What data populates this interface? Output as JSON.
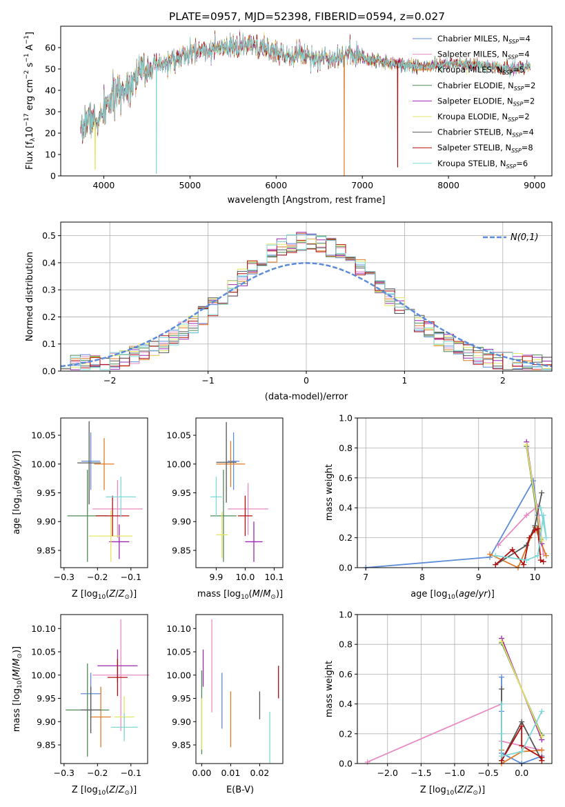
{
  "figure": {
    "title": "PLATE=0957, MJD=52398, FIBERID=0594, z=0.027"
  },
  "colors": [
    "#5b8bd9",
    "#e88bc4",
    "#e07a23",
    "#4f8a55",
    "#9b27b0",
    "#e2e560",
    "#555555",
    "#b00d0d",
    "#7fd8d8"
  ],
  "legend_labels": [
    {
      "text": "Chabrier MILES, N",
      "sub": "SSP",
      "tail": "=4"
    },
    {
      "text": "Salpeter MILES, N",
      "sub": "SSP",
      "tail": "=4"
    },
    {
      "text": "Kroupa MILES, N",
      "sub": "SSP",
      "tail": "=5"
    },
    {
      "text": "Chabrier ELODIE, N",
      "sub": "SSP",
      "tail": "=2"
    },
    {
      "text": "Salpeter ELODIE, N",
      "sub": "SSP",
      "tail": "=2"
    },
    {
      "text": "Kroupa ELODIE, N",
      "sub": "SSP",
      "tail": "=2"
    },
    {
      "text": "Chabrier STELIB, N",
      "sub": "SSP",
      "tail": "=4"
    },
    {
      "text": "Salpeter STELIB, N",
      "sub": "SSP",
      "tail": "=8"
    },
    {
      "text": "Kroupa STELIB, N",
      "sub": "SSP",
      "tail": "=6"
    }
  ],
  "chart_data": [
    {
      "id": "spectrum",
      "type": "line",
      "title": "PLATE=0957, MJD=52398, FIBERID=0594, z=0.027",
      "xlabel": "wavelength [Angstrom, rest frame]",
      "ylabel": "Flux [f_λ 10^-17 erg cm^-2 s^-1 A^-1]",
      "xlim": [
        3500,
        9200
      ],
      "ylim": [
        0,
        70
      ],
      "xticks": [
        4000,
        5000,
        6000,
        7000,
        8000,
        9000
      ],
      "yticks": [
        0,
        10,
        20,
        30,
        40,
        50,
        60
      ],
      "grid": false,
      "legend": "top-right",
      "continuum": [
        [
          3730,
          16
        ],
        [
          3780,
          26
        ],
        [
          3850,
          27
        ],
        [
          3900,
          25
        ],
        [
          3970,
          27
        ],
        [
          4050,
          34
        ],
        [
          4150,
          38
        ],
        [
          4300,
          43
        ],
        [
          4400,
          48
        ],
        [
          4550,
          51
        ],
        [
          4700,
          52
        ],
        [
          4850,
          55
        ],
        [
          5000,
          57
        ],
        [
          5150,
          59
        ],
        [
          5300,
          59
        ],
        [
          5500,
          60
        ],
        [
          5700,
          61
        ],
        [
          5900,
          59
        ],
        [
          6100,
          57
        ],
        [
          6300,
          57
        ],
        [
          6500,
          55
        ],
        [
          6700,
          56
        ],
        [
          6900,
          57
        ],
        [
          7100,
          54
        ],
        [
          7300,
          53
        ],
        [
          7500,
          52
        ],
        [
          7700,
          51
        ],
        [
          7900,
          52
        ],
        [
          8200,
          52
        ],
        [
          8500,
          51
        ],
        [
          8750,
          50
        ],
        [
          8950,
          51
        ]
      ],
      "dips": [
        [
          4610,
          1,
          8
        ],
        [
          6790,
          0,
          2
        ],
        [
          7410,
          4,
          7
        ],
        [
          3900,
          3,
          5
        ]
      ]
    },
    {
      "id": "residuals",
      "type": "histogram",
      "xlabel": "(data-model)/error",
      "ylabel": "Normed distribution",
      "xlim": [
        -2.5,
        2.5
      ],
      "ylim": [
        0,
        0.55
      ],
      "xticks": [
        -2,
        -1,
        0,
        1,
        2
      ],
      "yticks": [
        0.0,
        0.1,
        0.2,
        0.3,
        0.4,
        0.5
      ],
      "grid": true,
      "legend": "top-right",
      "bin_width": 0.1,
      "normal_label": "N(0,1)"
    },
    {
      "id": "age-vs-Z",
      "type": "errorbar",
      "xlabel": "Z [log10(Z/Z☉)]",
      "ylabel": "age [log10(age/yr)]",
      "xlim": [
        -0.31,
        -0.05
      ],
      "ylim": [
        9.82,
        10.08
      ],
      "xticks": [
        -0.3,
        -0.2,
        -0.1
      ],
      "yticks": [
        9.85,
        9.9,
        9.95,
        10.0,
        10.05
      ],
      "points": [
        {
          "x": -0.22,
          "xerr": 0.028,
          "y": 10.005,
          "yerr": 0.05
        },
        {
          "x": -0.14,
          "xerr": 0.075,
          "y": 9.922,
          "yerr": 0.05
        },
        {
          "x": -0.18,
          "xerr": 0.03,
          "y": 10.0,
          "yerr": 0.045
        },
        {
          "x": -0.23,
          "xerr": 0.06,
          "y": 9.91,
          "yerr": 0.08
        },
        {
          "x": -0.135,
          "xerr": 0.03,
          "y": 9.865,
          "yerr": 0.03
        },
        {
          "x": -0.16,
          "xerr": 0.065,
          "y": 9.875,
          "yerr": 0.045
        },
        {
          "x": -0.225,
          "xerr": 0.035,
          "y": 10.002,
          "yerr": 0.072
        },
        {
          "x": -0.155,
          "xerr": 0.05,
          "y": 9.91,
          "yerr": 0.035
        },
        {
          "x": -0.13,
          "xerr": 0.045,
          "y": 9.943,
          "yerr": 0.035
        }
      ]
    },
    {
      "id": "age-vs-mass",
      "type": "errorbar",
      "xlabel": "mass [log10(M/M☉)]",
      "xlim": [
        9.83,
        10.13
      ],
      "ylim": [
        9.82,
        10.08
      ],
      "xticks": [
        9.9,
        10.0,
        10.1
      ],
      "yticks": [
        9.85,
        9.9,
        9.95,
        10.0,
        10.05
      ],
      "points": [
        {
          "x": 9.96,
          "xerr": 0.02,
          "y": 10.005,
          "yerr": 0.05
        },
        {
          "x": 10.01,
          "xerr": 0.07,
          "y": 9.922,
          "yerr": 0.045
        },
        {
          "x": 9.95,
          "xerr": 0.05,
          "y": 10.0,
          "yerr": 0.04
        },
        {
          "x": 9.925,
          "xerr": 0.045,
          "y": 9.91,
          "yerr": 0.08
        },
        {
          "x": 10.03,
          "xerr": 0.03,
          "y": 9.865,
          "yerr": 0.035
        },
        {
          "x": 9.92,
          "xerr": 0.02,
          "y": 9.877,
          "yerr": 0.04
        },
        {
          "x": 9.935,
          "xerr": 0.035,
          "y": 10.003,
          "yerr": 0.07
        },
        {
          "x": 10.0,
          "xerr": 0.025,
          "y": 9.91,
          "yerr": 0.035
        },
        {
          "x": 9.9,
          "xerr": 0.02,
          "y": 9.943,
          "yerr": 0.035
        }
      ]
    },
    {
      "id": "mass-weight-vs-age",
      "type": "line",
      "xlabel": "age [log10(age/yr)]",
      "ylabel": "mass weight",
      "xlim": [
        6.85,
        10.3
      ],
      "ylim": [
        0,
        1.0
      ],
      "xticks": [
        7,
        8,
        9,
        10
      ],
      "yticks": [
        0.0,
        0.2,
        0.4,
        0.6,
        0.8,
        1.0
      ],
      "series": [
        {
          "x": [
            7.0,
            9.2,
            9.97,
            10.05
          ],
          "y": [
            0.0,
            0.07,
            0.58,
            0.35
          ]
        },
        {
          "x": [
            9.35,
            9.85,
            10.05,
            10.15
          ],
          "y": [
            0.15,
            0.35,
            0.41,
            0.09
          ]
        },
        {
          "x": [
            9.2,
            9.7,
            10.0,
            10.2
          ],
          "y": [
            0.09,
            0.0,
            0.27,
            0.08
          ]
        },
        {
          "x": [
            9.85,
            10.1
          ],
          "y": [
            0.81,
            0.19
          ]
        },
        {
          "x": [
            9.85,
            10.12
          ],
          "y": [
            0.84,
            0.16
          ]
        },
        {
          "x": [
            9.85,
            10.12
          ],
          "y": [
            0.82,
            0.18
          ]
        },
        {
          "x": [
            9.3,
            9.85,
            10.0,
            10.12
          ],
          "y": [
            0.02,
            0.15,
            0.28,
            0.5
          ]
        },
        {
          "x": [
            9.3,
            9.6,
            9.8,
            9.9,
            10.0,
            10.05,
            10.1,
            10.15
          ],
          "y": [
            0.02,
            0.12,
            0.02,
            0.2,
            0.25,
            0.26,
            0.05,
            0.04
          ]
        },
        {
          "x": [
            9.3,
            9.85,
            10.05,
            10.15,
            10.2,
            10.1
          ],
          "y": [
            0.08,
            0.05,
            0.08,
            0.35,
            0.2,
            0.4
          ]
        }
      ]
    },
    {
      "id": "mass-vs-Z",
      "type": "errorbar",
      "xlabel": "Z [log10(Z/Z☉)]",
      "ylabel": "mass [log10(M/M☉)]",
      "xlim": [
        -0.31,
        -0.05
      ],
      "ylim": [
        9.81,
        10.13
      ],
      "xticks": [
        -0.3,
        -0.2,
        -0.1
      ],
      "yticks": [
        9.85,
        9.9,
        9.95,
        10.0,
        10.05,
        10.1
      ],
      "points": [
        {
          "x": -0.22,
          "xerr": 0.03,
          "y": 9.96,
          "yerr": 0.045
        },
        {
          "x": -0.13,
          "xerr": 0.085,
          "y": 10.0,
          "yerr": 0.12
        },
        {
          "x": -0.19,
          "xerr": 0.03,
          "y": 9.91,
          "yerr": 0.065
        },
        {
          "x": -0.23,
          "xerr": 0.065,
          "y": 9.925,
          "yerr": 0.1
        },
        {
          "x": -0.14,
          "xerr": 0.06,
          "y": 10.02,
          "yerr": 0.035
        },
        {
          "x": -0.12,
          "xerr": 0.03,
          "y": 9.91,
          "yerr": 0.045
        },
        {
          "x": -0.22,
          "xerr": 0.03,
          "y": 9.925,
          "yerr": 0.05
        },
        {
          "x": -0.14,
          "xerr": 0.03,
          "y": 9.995,
          "yerr": 0.04
        },
        {
          "x": -0.12,
          "xerr": 0.04,
          "y": 9.888,
          "yerr": 0.03
        }
      ]
    },
    {
      "id": "mass-vs-EBV",
      "type": "errorbar",
      "xlabel": "E(B-V)",
      "xlim": [
        -0.002,
        0.028
      ],
      "ylim": [
        9.81,
        10.13
      ],
      "xticks": [
        0.0,
        0.01,
        0.02
      ],
      "yticks": [
        9.85,
        9.9,
        9.95,
        10.0,
        10.05,
        10.1
      ],
      "xticklabels": [
        "0.00",
        "0.01",
        "0.02"
      ],
      "points": [
        {
          "x": 0.007,
          "xerr": 0,
          "y": 9.945,
          "yerr": 0.06
        },
        {
          "x": 0.0035,
          "xerr": 0,
          "y": 10.02,
          "yerr": 0.1
        },
        {
          "x": 0.01,
          "xerr": 0,
          "y": 9.905,
          "yerr": 0.06
        },
        {
          "x": 0.0,
          "xerr": 0,
          "y": 9.92,
          "yerr": 0.09
        },
        {
          "x": 0.0005,
          "xerr": 0,
          "y": 10.015,
          "yerr": 0.04
        },
        {
          "x": 0.0,
          "xerr": 0,
          "y": 9.895,
          "yerr": 0.055
        },
        {
          "x": 0.02,
          "xerr": 0,
          "y": 9.935,
          "yerr": 0.03
        },
        {
          "x": 0.0265,
          "xerr": 0,
          "y": 9.985,
          "yerr": 0.035
        },
        {
          "x": 0.0235,
          "xerr": 0,
          "y": 9.866,
          "yerr": 0.055
        }
      ]
    },
    {
      "id": "mass-weight-vs-Z",
      "type": "line",
      "xlabel": "Z [log10(Z/Z☉)]",
      "ylabel": "mass weight",
      "xlim": [
        -2.45,
        0.45
      ],
      "ylim": [
        0,
        1.0
      ],
      "xticks": [
        -2.0,
        -1.5,
        -1.0,
        -0.5,
        0.0
      ],
      "yticks": [
        0.0,
        0.2,
        0.4,
        0.6,
        0.8,
        1.0
      ],
      "xticklabels": [
        "−2.0",
        "−1.5",
        "−1.0",
        "−0.5",
        "0.0"
      ],
      "series": [
        {
          "x": [
            -0.3,
            -0.3,
            -0.3,
            0.0,
            0.3
          ],
          "y": [
            0.58,
            0.35,
            0.07,
            0.0,
            0.05
          ]
        },
        {
          "x": [
            -2.3,
            -0.3,
            -0.3,
            0.3
          ],
          "y": [
            0.01,
            0.4,
            0.15,
            0.09
          ]
        },
        {
          "x": [
            -0.3,
            -0.3,
            0.0,
            0.3
          ],
          "y": [
            0.09,
            0.0,
            0.08,
            0.09
          ]
        },
        {
          "x": [
            -0.3,
            0.3
          ],
          "y": [
            0.81,
            0.19
          ]
        },
        {
          "x": [
            -0.3,
            0.3
          ],
          "y": [
            0.84,
            0.16
          ]
        },
        {
          "x": [
            -0.3,
            0.3
          ],
          "y": [
            0.82,
            0.18
          ]
        },
        {
          "x": [
            -0.3,
            -0.3,
            0.0,
            0.3
          ],
          "y": [
            0.5,
            0.02,
            0.28,
            0.02
          ]
        },
        {
          "x": [
            -0.3,
            0.0,
            0.0,
            0.3,
            0.3
          ],
          "y": [
            0.02,
            0.25,
            0.12,
            0.04,
            0.02
          ]
        },
        {
          "x": [
            -0.3,
            -0.3,
            -0.3,
            0.0,
            0.3
          ],
          "y": [
            0.4,
            0.2,
            0.05,
            0.08,
            0.35
          ]
        }
      ]
    }
  ]
}
